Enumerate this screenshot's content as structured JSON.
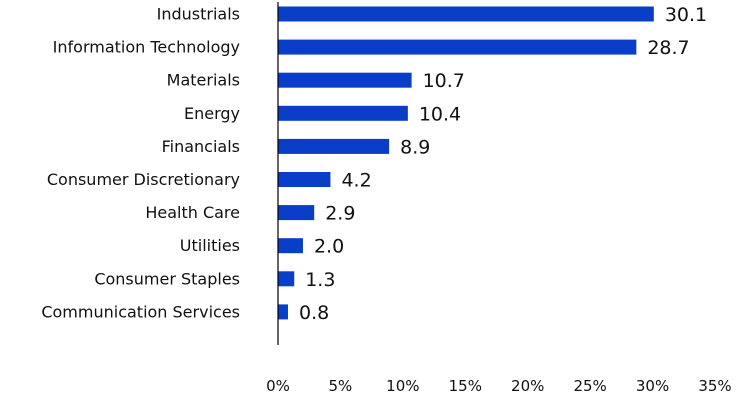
{
  "chart_data": {
    "type": "bar",
    "orientation": "horizontal",
    "categories": [
      "Industrials",
      "Information Technology",
      "Materials",
      "Energy",
      "Financials",
      "Consumer Discretionary",
      "Health Care",
      "Utilities",
      "Consumer Staples",
      "Communication Services"
    ],
    "values": [
      30.1,
      28.7,
      10.7,
      10.4,
      8.9,
      4.2,
      2.9,
      2.0,
      1.3,
      0.8
    ],
    "value_labels": [
      "30.1",
      "28.7",
      "10.7",
      "10.4",
      "8.9",
      "4.2",
      "2.9",
      "2.0",
      "1.3",
      "0.8"
    ],
    "xlim": [
      0,
      35
    ],
    "x_ticks": [
      0,
      5,
      10,
      15,
      20,
      25,
      30,
      35
    ],
    "x_tick_labels": [
      "0%",
      "5%",
      "10%",
      "15%",
      "20%",
      "25%",
      "30%",
      "35%"
    ],
    "title": "",
    "xlabel": "",
    "ylabel": "",
    "grid": false,
    "bar_color": "#0a3ec8"
  }
}
